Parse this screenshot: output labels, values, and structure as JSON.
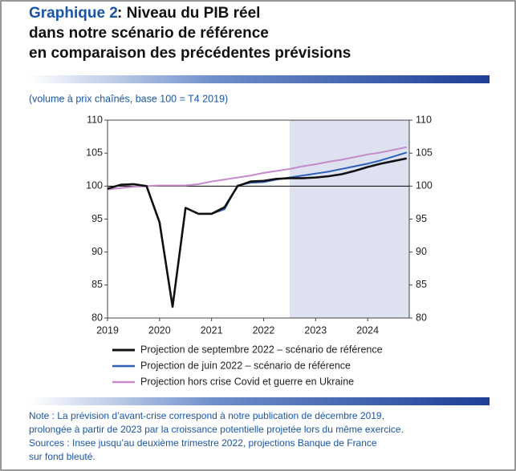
{
  "chart_data": {
    "type": "line",
    "title_number": "Graphique 2",
    "title_lines": [
      ": Niveau du PIB réel",
      "dans notre scénario de référence",
      "en comparaison des précédentes prévisions"
    ],
    "subtitle": "(volume à prix chaînés, base 100 = T4 2019)",
    "x": [
      2019,
      2019.25,
      2019.5,
      2019.75,
      2020,
      2020.25,
      2020.5,
      2020.75,
      2021,
      2021.25,
      2021.5,
      2021.75,
      2022,
      2022.25,
      2022.5,
      2022.75,
      2023,
      2023.25,
      2023.5,
      2023.75,
      2024,
      2024.25,
      2024.5,
      2024.75
    ],
    "xlim": [
      2019,
      2024.8
    ],
    "xticks": [
      2019,
      2020,
      2021,
      2022,
      2023,
      2024
    ],
    "ylim": [
      80,
      110
    ],
    "yticks": [
      80,
      85,
      90,
      95,
      100,
      105,
      110
    ],
    "y2lim": [
      80,
      110
    ],
    "y2ticks": [
      80,
      85,
      90,
      95,
      100,
      105,
      110
    ],
    "reference_line": 100,
    "shaded_from": 2022.5,
    "series": [
      {
        "name": "Projection de septembre 2022 – scénario de référence",
        "color": "#111111",
        "values": [
          99.6,
          100.2,
          100.3,
          100.0,
          94.5,
          81.7,
          96.7,
          95.8,
          95.8,
          96.8,
          100.0,
          100.7,
          100.8,
          101.1,
          101.2,
          101.2,
          101.3,
          101.5,
          101.8,
          102.3,
          102.9,
          103.4,
          103.8,
          104.2
        ]
      },
      {
        "name": "Projection de juin 2022 – scénario de référence",
        "color": "#2c5fb8",
        "values": [
          99.6,
          100.2,
          100.3,
          100.0,
          94.5,
          81.7,
          96.7,
          95.8,
          95.8,
          96.5,
          100.1,
          100.5,
          100.6,
          101.0,
          101.3,
          101.6,
          101.9,
          102.2,
          102.6,
          103.0,
          103.4,
          103.9,
          104.5,
          105.1
        ]
      },
      {
        "name": "Projection hors crise Covid et guerre en Ukraine",
        "color": "#c58ac9",
        "values": [
          99.5,
          99.7,
          99.9,
          100.0,
          100.1,
          100.1,
          100.1,
          100.3,
          100.7,
          101.0,
          101.3,
          101.6,
          102.0,
          102.3,
          102.6,
          103.0,
          103.3,
          103.7,
          104.0,
          104.4,
          104.8,
          105.1,
          105.5,
          105.9
        ]
      }
    ],
    "note_lines": [
      "Note : La prévision d’avant-crise correspond à notre publication de décembre 2019,",
      "prolongée à partir de 2023 par la croissance potentielle projetée lors du même exercice.",
      "Sources : Insee jusqu’au deuxième trimestre 2022, projections Banque de France",
      "sur fond bleuté."
    ]
  }
}
